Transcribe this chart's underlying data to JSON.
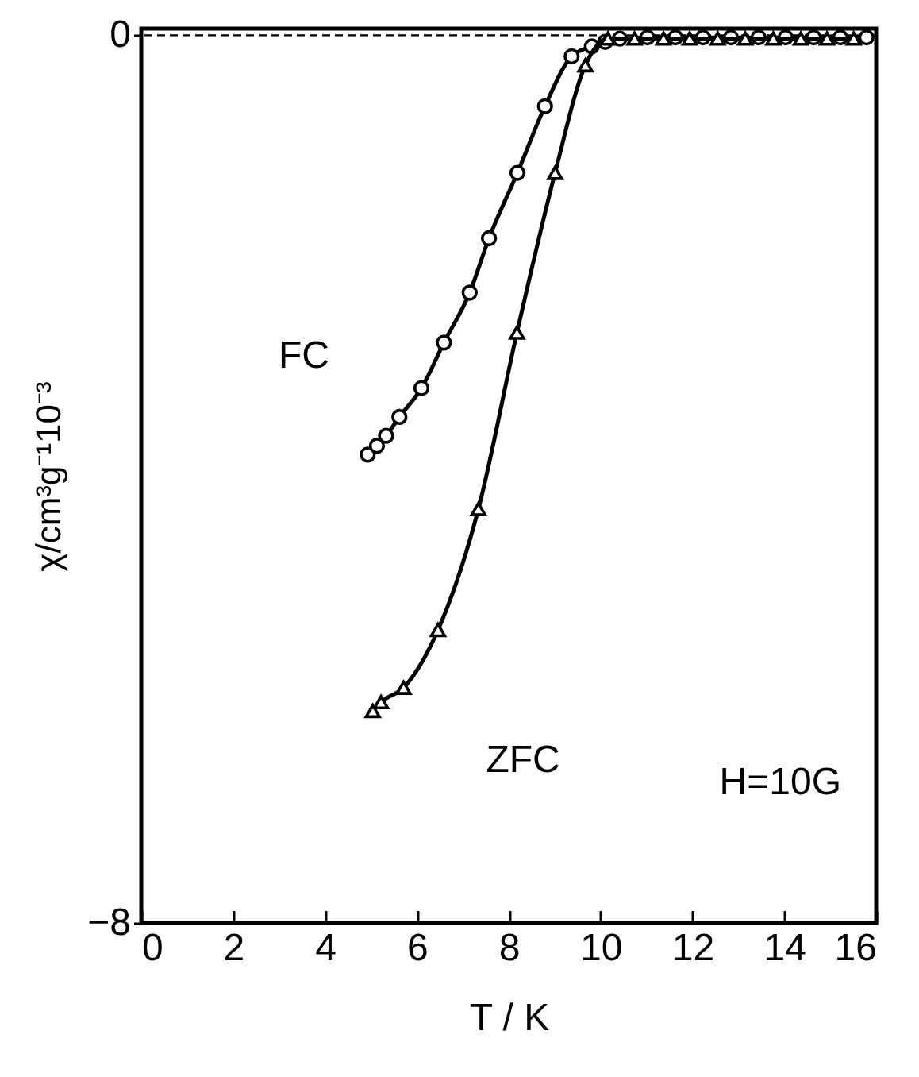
{
  "chart_data": {
    "type": "line",
    "xlabel": "T / K",
    "ylabel": "χ/cm³g⁻¹10⁻³",
    "xlim": [
      0,
      16
    ],
    "ylim": [
      -8,
      0.06
    ],
    "xticks": [
      0,
      2,
      4,
      6,
      8,
      10,
      12,
      14,
      16
    ],
    "yticks": [
      -8,
      0
    ],
    "annotations": [
      "H=10G"
    ],
    "ref_lines": [
      {
        "axis": "y",
        "value": 0,
        "line_style": "dashed",
        "color": "#000000"
      }
    ],
    "series": [
      {
        "name": "FC",
        "color": "#000000",
        "marker": "circle",
        "x": [
          4.93,
          5.13,
          5.33,
          5.62,
          6.1,
          6.59,
          7.15,
          7.57,
          8.19,
          8.79,
          9.37,
          9.81,
          10.1,
          10.42,
          11.02,
          11.63,
          12.23,
          12.84,
          13.44,
          14.03,
          14.64,
          15.22,
          15.79
        ],
        "values": [
          -3.78,
          -3.7,
          -3.61,
          -3.44,
          -3.18,
          -2.77,
          -2.32,
          -1.83,
          -1.24,
          -0.64,
          -0.19,
          -0.1,
          -0.06,
          -0.03,
          -0.02,
          -0.02,
          -0.02,
          -0.02,
          -0.02,
          -0.02,
          -0.02,
          -0.02,
          -0.02
        ]
      },
      {
        "name": "ZFC",
        "color": "#000000",
        "marker": "triangle",
        "x": [
          5.04,
          5.22,
          5.71,
          6.46,
          7.34,
          8.18,
          9.01,
          9.67,
          10.16,
          10.74,
          11.37,
          11.94,
          12.55,
          13.15,
          13.76,
          14.36,
          14.93,
          15.51
        ],
        "values": [
          -6.09,
          -6.01,
          -5.88,
          -5.36,
          -4.27,
          -2.68,
          -1.24,
          -0.27,
          -0.03,
          -0.03,
          -0.03,
          -0.03,
          -0.03,
          -0.03,
          -0.03,
          -0.03,
          -0.03,
          -0.03
        ]
      }
    ]
  }
}
